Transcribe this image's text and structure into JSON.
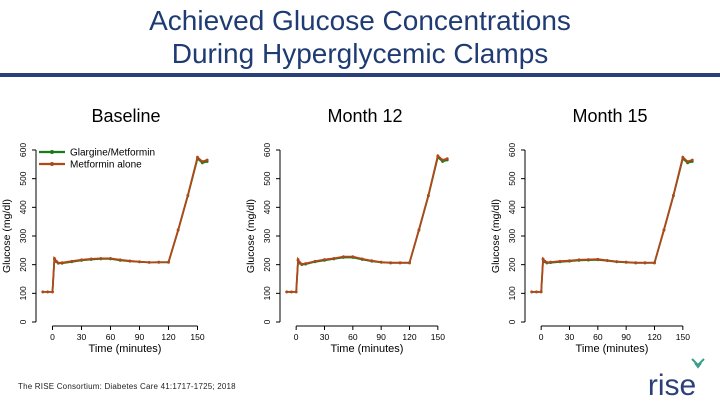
{
  "slide": {
    "title_line1": "Achieved Glucose Concentrations",
    "title_line2": "During Hyperglycemic Clamps",
    "citation": "The RISE Consortium: Diabetes Care 41:1717-1725; 2018",
    "logo_text": "rise"
  },
  "colors": {
    "title": "#1f3b73",
    "rule": "#2b3f7a",
    "glargine_metformin": "#1a7a1a",
    "metformin_alone": "#b2471a",
    "logo": "#2b3f7a"
  },
  "chart_data": [
    {
      "type": "line",
      "panel_title": "Baseline",
      "xlabel": "Time (minutes)",
      "ylabel": "Glucose (mg/dl)",
      "xlim": [
        -15,
        165
      ],
      "ylim": [
        0,
        600
      ],
      "xticks": [
        0,
        30,
        60,
        90,
        120,
        150
      ],
      "yticks": [
        0,
        100,
        200,
        300,
        400,
        500,
        600
      ],
      "grid": false,
      "legend": "top-left",
      "series": [
        {
          "name": "Glargine/Metformin",
          "x": [
            -10,
            -5,
            0,
            2,
            4,
            6,
            10,
            20,
            30,
            40,
            50,
            60,
            70,
            80,
            90,
            100,
            110,
            120,
            130,
            140,
            150,
            155,
            160
          ],
          "y": [
            105,
            105,
            105,
            220,
            210,
            205,
            205,
            210,
            215,
            218,
            220,
            220,
            215,
            212,
            210,
            208,
            208,
            208,
            320,
            440,
            570,
            555,
            560
          ]
        },
        {
          "name": "Metformin alone",
          "x": [
            -10,
            -5,
            0,
            2,
            4,
            6,
            10,
            20,
            30,
            40,
            50,
            60,
            70,
            80,
            90,
            100,
            110,
            120,
            130,
            140,
            150,
            155,
            160
          ],
          "y": [
            105,
            105,
            105,
            222,
            212,
            206,
            207,
            212,
            217,
            220,
            222,
            222,
            217,
            213,
            210,
            208,
            209,
            209,
            322,
            442,
            575,
            560,
            565
          ]
        }
      ]
    },
    {
      "type": "line",
      "panel_title": "Month 12",
      "xlabel": "Time (minutes)",
      "ylabel": "Glucose (mg/dl)",
      "xlim": [
        -15,
        165
      ],
      "ylim": [
        0,
        600
      ],
      "xticks": [
        0,
        30,
        60,
        90,
        120,
        150
      ],
      "yticks": [
        0,
        100,
        200,
        300,
        400,
        500,
        600
      ],
      "grid": false,
      "legend": "none",
      "series": [
        {
          "name": "Glargine/Metformin",
          "x": [
            -10,
            -5,
            0,
            2,
            4,
            6,
            10,
            20,
            30,
            40,
            50,
            60,
            70,
            80,
            90,
            100,
            110,
            120,
            130,
            140,
            150,
            155,
            160
          ],
          "y": [
            105,
            105,
            105,
            215,
            205,
            200,
            202,
            210,
            215,
            220,
            225,
            225,
            218,
            212,
            208,
            206,
            206,
            206,
            320,
            440,
            575,
            560,
            565
          ]
        },
        {
          "name": "Metformin alone",
          "x": [
            -10,
            -5,
            0,
            2,
            4,
            6,
            10,
            20,
            30,
            40,
            50,
            60,
            70,
            80,
            90,
            100,
            110,
            120,
            130,
            140,
            150,
            155,
            160
          ],
          "y": [
            105,
            105,
            105,
            218,
            207,
            202,
            204,
            212,
            218,
            222,
            228,
            228,
            220,
            214,
            209,
            207,
            207,
            207,
            322,
            442,
            580,
            565,
            570
          ]
        }
      ]
    },
    {
      "type": "line",
      "panel_title": "Month 15",
      "xlabel": "Time (minutes)",
      "ylabel": "Glucose (mg/dl)",
      "xlim": [
        -15,
        165
      ],
      "ylim": [
        0,
        600
      ],
      "xticks": [
        0,
        30,
        60,
        90,
        120,
        150
      ],
      "yticks": [
        0,
        100,
        200,
        300,
        400,
        500,
        600
      ],
      "grid": false,
      "legend": "none",
      "series": [
        {
          "name": "Glargine/Metformin",
          "x": [
            -10,
            -5,
            0,
            2,
            4,
            6,
            10,
            20,
            30,
            40,
            50,
            60,
            70,
            80,
            90,
            100,
            110,
            120,
            130,
            140,
            150,
            155,
            160
          ],
          "y": [
            105,
            105,
            105,
            218,
            210,
            206,
            207,
            210,
            212,
            215,
            216,
            217,
            214,
            210,
            208,
            206,
            206,
            206,
            320,
            440,
            570,
            555,
            560
          ]
        },
        {
          "name": "Metformin alone",
          "x": [
            -10,
            -5,
            0,
            2,
            4,
            6,
            10,
            20,
            30,
            40,
            50,
            60,
            70,
            80,
            90,
            100,
            110,
            120,
            130,
            140,
            150,
            155,
            160
          ],
          "y": [
            105,
            105,
            105,
            220,
            212,
            208,
            209,
            212,
            214,
            217,
            218,
            219,
            215,
            211,
            209,
            207,
            207,
            207,
            322,
            442,
            575,
            560,
            565
          ]
        }
      ]
    }
  ]
}
